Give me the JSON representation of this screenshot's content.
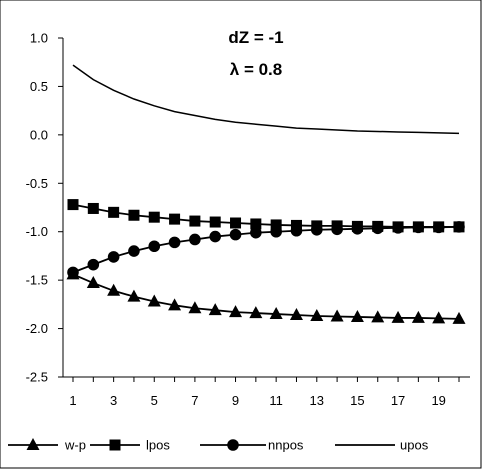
{
  "chart_data": {
    "type": "line",
    "title": "",
    "xlabel": "",
    "ylabel": "",
    "annotations": [
      "dZ = -1",
      "λ = 0.8"
    ],
    "x": [
      1,
      2,
      3,
      4,
      5,
      6,
      7,
      8,
      9,
      10,
      11,
      12,
      13,
      14,
      15,
      16,
      17,
      18,
      19,
      20
    ],
    "x_ticks": [
      1,
      3,
      5,
      7,
      9,
      11,
      13,
      15,
      17,
      19
    ],
    "y_ticks": [
      1.0,
      0.5,
      0.0,
      -0.5,
      -1.0,
      -1.5,
      -2.0,
      -2.5
    ],
    "y_tick_labels": [
      "1.0",
      "0.5",
      "0.0",
      "-0.5",
      "-1.0",
      "-1.5",
      "-2.0",
      "-2.5"
    ],
    "ylim": [
      -2.5,
      1.0
    ],
    "xlim": [
      1,
      20
    ],
    "grid": false,
    "legend_position": "bottom",
    "series": [
      {
        "name": "w-p",
        "marker": "triangle",
        "color": "#000000",
        "values": [
          -1.44,
          -1.53,
          -1.61,
          -1.67,
          -1.72,
          -1.76,
          -1.79,
          -1.81,
          -1.83,
          -1.84,
          -1.85,
          -1.86,
          -1.87,
          -1.875,
          -1.88,
          -1.885,
          -1.89,
          -1.89,
          -1.895,
          -1.9
        ]
      },
      {
        "name": "lpos",
        "marker": "square",
        "color": "#000000",
        "values": [
          -0.72,
          -0.76,
          -0.8,
          -0.83,
          -0.85,
          -0.87,
          -0.89,
          -0.9,
          -0.91,
          -0.92,
          -0.93,
          -0.935,
          -0.94,
          -0.94,
          -0.945,
          -0.945,
          -0.95,
          -0.95,
          -0.95,
          -0.95
        ]
      },
      {
        "name": "nnpos",
        "marker": "circle",
        "color": "#000000",
        "values": [
          -1.42,
          -1.34,
          -1.26,
          -1.2,
          -1.15,
          -1.11,
          -1.08,
          -1.05,
          -1.03,
          -1.01,
          -1.0,
          -0.99,
          -0.98,
          -0.975,
          -0.97,
          -0.965,
          -0.96,
          -0.955,
          -0.955,
          -0.95
        ]
      },
      {
        "name": "upos",
        "marker": "none",
        "color": "#000000",
        "values": [
          0.72,
          0.57,
          0.46,
          0.37,
          0.3,
          0.24,
          0.2,
          0.16,
          0.13,
          0.11,
          0.09,
          0.07,
          0.06,
          0.05,
          0.04,
          0.035,
          0.03,
          0.025,
          0.02,
          0.015
        ]
      }
    ]
  }
}
